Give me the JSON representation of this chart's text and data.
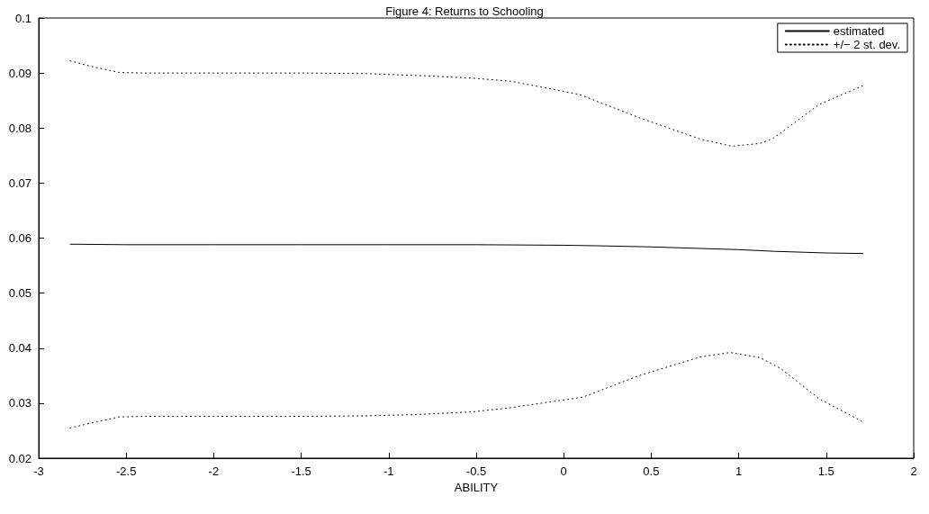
{
  "chart_data": {
    "type": "line",
    "title": "Figure 4: Returns to Schooling",
    "xlabel": "ABILITY",
    "xlim": [
      -3,
      2
    ],
    "xticks": [
      -3,
      -2.5,
      -2,
      -1.5,
      -1,
      -0.5,
      0,
      0.5,
      1,
      1.5,
      2
    ],
    "ylim": [
      0.02,
      0.1
    ],
    "yticks": [
      0.02,
      0.03,
      0.04,
      0.05,
      0.06,
      0.07,
      0.08,
      0.09,
      0.1
    ],
    "grid": false,
    "legend": "top right",
    "marker": "none",
    "series": [
      {
        "name": "estimated",
        "color": "#000000",
        "line_style": "solid",
        "x": [
          -2.82,
          -2.5,
          -2.0,
          -1.5,
          -1.0,
          -0.5,
          0.0,
          0.2,
          0.5,
          0.8,
          1.0,
          1.2,
          1.5,
          1.71
        ],
        "values": [
          0.0589,
          0.0588,
          0.0588,
          0.0588,
          0.0588,
          0.0588,
          0.0587,
          0.0586,
          0.0584,
          0.0581,
          0.0579,
          0.0576,
          0.0573,
          0.0572
        ]
      },
      {
        "name": "+/− 2 st. dev.",
        "color": "#000000",
        "line_style": "dotted",
        "x": [
          -2.82,
          -2.7,
          -2.54,
          -2.4,
          -2.0,
          -1.5,
          -1.13,
          -0.8,
          -0.53,
          -0.3,
          0.09,
          0.43,
          0.78,
          0.96,
          1.12,
          1.19,
          1.24,
          1.46,
          1.71
        ],
        "values": [
          0.0922,
          0.0912,
          0.0901,
          0.09,
          0.09,
          0.09,
          0.0899,
          0.0895,
          0.0891,
          0.0885,
          0.0861,
          0.0819,
          0.078,
          0.0767,
          0.0772,
          0.078,
          0.0791,
          0.0843,
          0.0877
        ]
      },
      {
        "color": "#000000",
        "line_style": "dotted",
        "x": [
          -2.82,
          -2.7,
          -2.54,
          -2.4,
          -2.0,
          -1.5,
          -1.13,
          -0.87,
          -0.53,
          -0.32,
          0.11,
          0.43,
          0.78,
          0.95,
          1.12,
          1.24,
          1.46,
          1.71
        ],
        "values": [
          0.0255,
          0.0264,
          0.0275,
          0.0276,
          0.0276,
          0.0276,
          0.0277,
          0.0279,
          0.0284,
          0.0291,
          0.0311,
          0.035,
          0.0384,
          0.0392,
          0.0383,
          0.0363,
          0.0308,
          0.0266
        ]
      }
    ]
  }
}
